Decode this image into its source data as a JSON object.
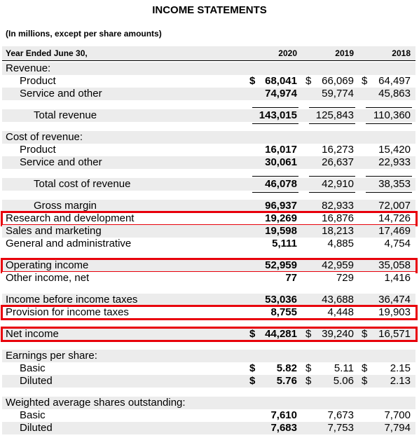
{
  "title": "INCOME STATEMENTS",
  "subtitle": "(In millions, except per share amounts)",
  "header": {
    "label": "Year Ended June 30,",
    "years": [
      "2020",
      "2019",
      "2018"
    ]
  },
  "groups": [
    [
      {
        "kind": "section",
        "label": "Revenue:"
      },
      {
        "kind": "item",
        "label": "Product",
        "cells": [
          {
            "currency": "$",
            "amount": "68,041"
          },
          {
            "currency": "$",
            "amount": "66,069"
          },
          {
            "currency": "$",
            "amount": "64,497"
          }
        ]
      },
      {
        "kind": "item",
        "label": "Service and other",
        "cells": [
          "74,974",
          "59,774",
          "45,863"
        ]
      }
    ],
    [
      {
        "kind": "total",
        "label": "Total revenue",
        "cells": [
          "143,015",
          "125,843",
          "110,360"
        ]
      }
    ],
    [
      {
        "kind": "section",
        "label": "Cost of revenue:"
      },
      {
        "kind": "item",
        "label": "Product",
        "cells": [
          "16,017",
          "16,273",
          "15,420"
        ]
      },
      {
        "kind": "item",
        "label": "Service and other",
        "cells": [
          "30,061",
          "26,637",
          "22,933"
        ]
      }
    ],
    [
      {
        "kind": "total",
        "label": "Total cost of revenue",
        "cells": [
          "46,078",
          "42,910",
          "38,353"
        ]
      }
    ],
    [
      {
        "kind": "total",
        "label": "Gross margin",
        "cells": [
          "96,937",
          "82,933",
          "72,007"
        ]
      },
      {
        "kind": "line",
        "label": "Research and development",
        "cells": [
          "19,269",
          "16,876",
          "14,726"
        ],
        "highlighted": true
      },
      {
        "kind": "line",
        "label": "Sales and marketing",
        "cells": [
          "19,598",
          "18,213",
          "17,469"
        ]
      },
      {
        "kind": "line",
        "label": "General and administrative",
        "cells": [
          "5,111",
          "4,885",
          "4,754"
        ]
      }
    ],
    [
      {
        "kind": "line",
        "label": "Operating income",
        "cells": [
          "52,959",
          "42,959",
          "35,058"
        ],
        "highlighted": true
      },
      {
        "kind": "line",
        "label": "Other income, net",
        "cells": [
          "77",
          "729",
          "1,416"
        ]
      }
    ],
    [
      {
        "kind": "line",
        "label": "Income before income taxes",
        "cells": [
          "53,036",
          "43,688",
          "36,474"
        ]
      },
      {
        "kind": "line",
        "label": "Provision for income taxes",
        "cells": [
          "8,755",
          "4,448",
          "19,903"
        ],
        "highlighted": true
      }
    ],
    [
      {
        "kind": "line",
        "label": "Net income",
        "cells": [
          {
            "currency": "$",
            "amount": "44,281"
          },
          {
            "currency": "$",
            "amount": "39,240"
          },
          {
            "currency": "$",
            "amount": "16,571"
          }
        ],
        "highlighted": true
      }
    ],
    [
      {
        "kind": "section",
        "label": "Earnings per share:"
      },
      {
        "kind": "item",
        "label": "Basic",
        "cells": [
          {
            "currency": "$",
            "amount": "5.82"
          },
          {
            "currency": "$",
            "amount": "5.11"
          },
          {
            "currency": "$",
            "amount": "2.15"
          }
        ]
      },
      {
        "kind": "item",
        "label": "Diluted",
        "cells": [
          {
            "currency": "$",
            "amount": "5.76"
          },
          {
            "currency": "$",
            "amount": "5.06"
          },
          {
            "currency": "$",
            "amount": "2.13"
          }
        ]
      }
    ],
    [
      {
        "kind": "section",
        "label": "Weighted average shares outstanding:"
      },
      {
        "kind": "item",
        "label": "Basic",
        "cells": [
          "7,610",
          "7,673",
          "7,700"
        ]
      },
      {
        "kind": "item",
        "label": "Diluted",
        "cells": [
          "7,683",
          "7,753",
          "7,794"
        ]
      }
    ]
  ]
}
